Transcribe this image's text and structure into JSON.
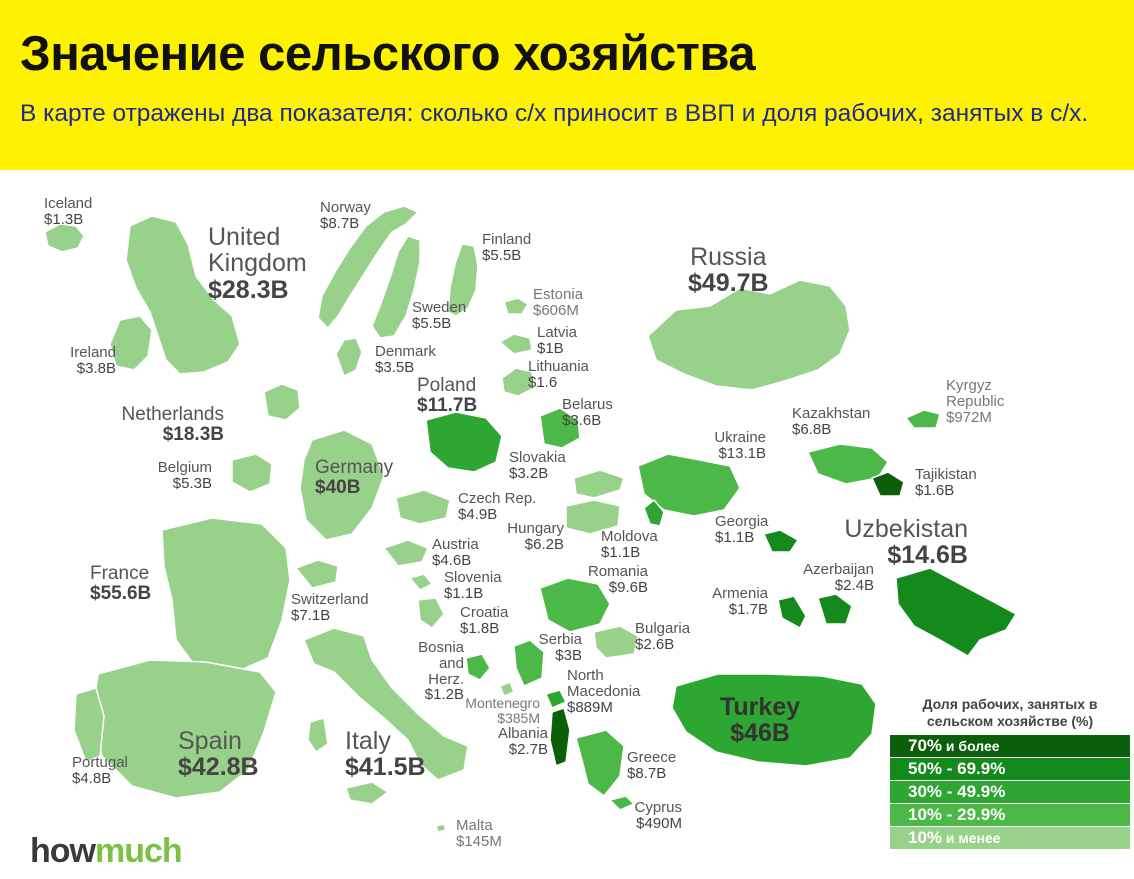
{
  "header": {
    "title": "Значение сельского хозяйства",
    "subtitle": "В карте отражены два показателя: сколько с/х приносит в ВВП и доля рабочих, занятых в с/х."
  },
  "colors": {
    "header_bg": "#fff200",
    "tier_70_plus": "#0b5f0b",
    "tier_50_69": "#138a1b",
    "tier_30_49": "#2ea632",
    "tier_10_29": "#4cb848",
    "tier_under_10": "#97d18a"
  },
  "countries": {
    "iceland": {
      "name": "Iceland",
      "value": "$1.3B"
    },
    "norway": {
      "name": "Norway",
      "value": "$8.7B"
    },
    "united_kingdom": {
      "name": "United Kingdom",
      "value": "$28.3B"
    },
    "finland": {
      "name": "Finland",
      "value": "$5.5B"
    },
    "russia": {
      "name": "Russia",
      "value": "$49.7B"
    },
    "estonia": {
      "name": "Estonia",
      "value": "$606M"
    },
    "sweden": {
      "name": "Sweden",
      "value": "$5.5B"
    },
    "latvia": {
      "name": "Latvia",
      "value": "$1B"
    },
    "ireland": {
      "name": "Ireland",
      "value": "$3.8B"
    },
    "denmark": {
      "name": "Denmark",
      "value": "$3.5B"
    },
    "lithuania": {
      "name": "Lithuania",
      "value": "$1.6"
    },
    "poland": {
      "name": "Poland",
      "value": "$11.7B"
    },
    "kyrgyz": {
      "name": "Kyrgyz Republic",
      "value": "$972M"
    },
    "belarus": {
      "name": "Belarus",
      "value": "$3.6B"
    },
    "netherlands": {
      "name": "Netherlands",
      "value": "$18.3B"
    },
    "kazakhstan": {
      "name": "Kazakhstan",
      "value": "$6.8B"
    },
    "ukraine": {
      "name": "Ukraine",
      "value": "$13.1B"
    },
    "belgium": {
      "name": "Belgium",
      "value": "$5.3B"
    },
    "germany": {
      "name": "Germany",
      "value": "$40B"
    },
    "slovakia": {
      "name": "Slovakia",
      "value": "$3.2B"
    },
    "tajikistan": {
      "name": "Tajikistan",
      "value": "$1.6B"
    },
    "czech": {
      "name": "Czech Rep.",
      "value": "$4.9B"
    },
    "hungary": {
      "name": "Hungary",
      "value": "$6.2B"
    },
    "georgia": {
      "name": "Georgia",
      "value": "$1.1B"
    },
    "uzbekistan": {
      "name": "Uzbekistan",
      "value": "$14.6B"
    },
    "moldova": {
      "name": "Moldova",
      "value": "$1.1B"
    },
    "austria": {
      "name": "Austria",
      "value": "$4.6B"
    },
    "france": {
      "name": "France",
      "value": "$55.6B"
    },
    "slovenia": {
      "name": "Slovenia",
      "value": "$1.1B"
    },
    "romania": {
      "name": "Romania",
      "value": "$9.6B"
    },
    "azerbaijan": {
      "name": "Azerbaijan",
      "value": "$2.4B"
    },
    "armenia": {
      "name": "Armenia",
      "value": "$1.7B"
    },
    "switzerland": {
      "name": "Switzerland",
      "value": "$7.1B"
    },
    "croatia": {
      "name": "Croatia",
      "value": "$1.8B"
    },
    "bulgaria": {
      "name": "Bulgaria",
      "value": "$2.6B"
    },
    "serbia": {
      "name": "Serbia",
      "value": "$3B"
    },
    "bosnia": {
      "name": "Bosnia and Herz.",
      "value": "$1.2B"
    },
    "north_macedonia": {
      "name": "North Macedonia",
      "value": "$889M"
    },
    "montenegro": {
      "name": "Montenegro",
      "value": "$385M"
    },
    "turkey": {
      "name": "Turkey",
      "value": "$46B"
    },
    "albania": {
      "name": "Albania",
      "value": "$2.7B"
    },
    "spain": {
      "name": "Spain",
      "value": "$42.8B"
    },
    "italy": {
      "name": "Italy",
      "value": "$41.5B"
    },
    "portugal": {
      "name": "Portugal",
      "value": "$4.8B"
    },
    "greece": {
      "name": "Greece",
      "value": "$8.7B"
    },
    "cyprus": {
      "name": "Cyprus",
      "value": "$490M"
    },
    "malta": {
      "name": "Malta",
      "value": "$145M"
    }
  },
  "legend": {
    "title": "Доля рабочих, занятых в сельском хозяйстве (%)",
    "items": [
      {
        "label": "70%",
        "suffix": " и более",
        "color": "#0b5f0b"
      },
      {
        "label": "50% - 69.9%",
        "suffix": "",
        "color": "#138a1b"
      },
      {
        "label": "30% - 49.9%",
        "suffix": "",
        "color": "#2ea632"
      },
      {
        "label": "10% - 29.9%",
        "suffix": "",
        "color": "#4cb848"
      },
      {
        "label": "10%",
        "suffix": " и менее",
        "color": "#97d18a"
      }
    ]
  },
  "logo": {
    "part1": "how",
    "part2": "much"
  }
}
